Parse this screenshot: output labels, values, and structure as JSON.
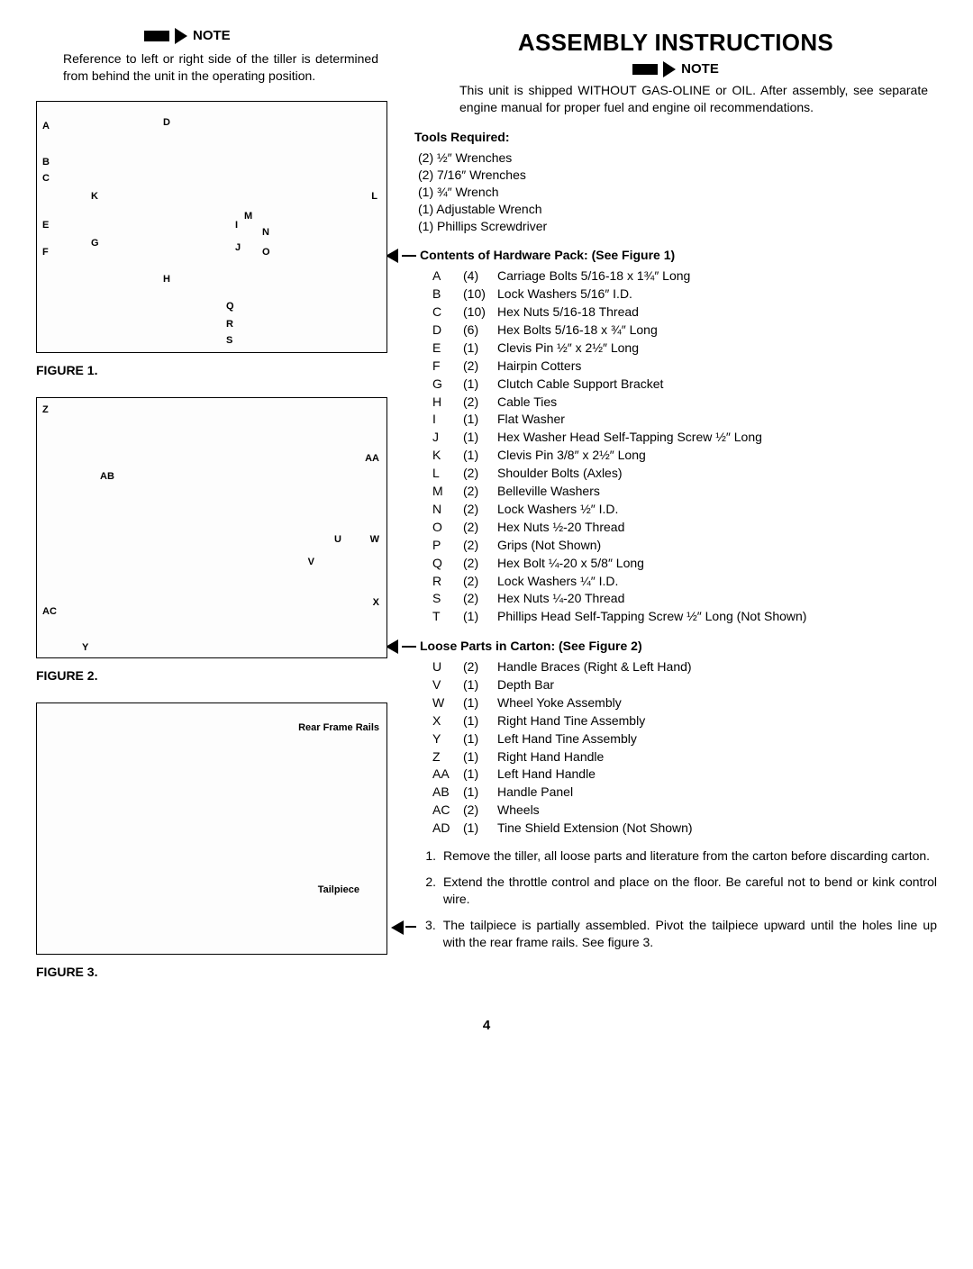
{
  "page_number": "4",
  "left": {
    "note_label": "NOTE",
    "note_body": "Reference to left or right side of the tiller is determined from behind the unit in the operating position.",
    "fig1_label": "FIGURE 1.",
    "fig1_callouts": [
      "A",
      "B",
      "C",
      "D",
      "E",
      "F",
      "G",
      "H",
      "I",
      "J",
      "K",
      "L",
      "M",
      "N",
      "O",
      "Q",
      "R",
      "S"
    ],
    "fig2_label": "FIGURE 2.",
    "fig2_callouts": [
      "Z",
      "AA",
      "AB",
      "U",
      "V",
      "W",
      "X",
      "Y",
      "AC"
    ],
    "fig3_label": "FIGURE 3.",
    "fig3_callouts": [
      "Rear Frame Rails",
      "Tailpiece"
    ]
  },
  "right": {
    "title": "ASSEMBLY INSTRUCTIONS",
    "note_label": "NOTE",
    "note_body": "This unit is shipped WITHOUT GAS-OLINE or OIL. After assembly, see separate engine manual for proper fuel and engine oil recommendations.",
    "tools_head": "Tools Required:",
    "tools": [
      "(2) ½″ Wrenches",
      "(2) 7/16″ Wrenches",
      "(1) ¾″ Wrench",
      "(1) Adjustable Wrench",
      "(1) Phillips Screwdriver"
    ],
    "hw_head": "Contents of Hardware Pack: (See Figure 1)",
    "hw_items": [
      {
        "l": "A",
        "q": "(4)",
        "d": "Carriage Bolts 5/16-18 x 1¾″ Long"
      },
      {
        "l": "B",
        "q": "(10)",
        "d": "Lock Washers 5/16″ I.D."
      },
      {
        "l": "C",
        "q": "(10)",
        "d": "Hex Nuts 5/16-18 Thread"
      },
      {
        "l": "D",
        "q": "(6)",
        "d": "Hex Bolts 5/16-18 x ¾″ Long"
      },
      {
        "l": "E",
        "q": "(1)",
        "d": "Clevis Pin ½″ x 2½″ Long"
      },
      {
        "l": "F",
        "q": "(2)",
        "d": "Hairpin Cotters"
      },
      {
        "l": "G",
        "q": "(1)",
        "d": "Clutch Cable Support Bracket"
      },
      {
        "l": "H",
        "q": "(2)",
        "d": "Cable Ties"
      },
      {
        "l": "I",
        "q": "(1)",
        "d": "Flat Washer"
      },
      {
        "l": "J",
        "q": "(1)",
        "d": "Hex Washer Head Self-Tapping Screw ½″ Long"
      },
      {
        "l": "K",
        "q": "(1)",
        "d": "Clevis Pin 3/8″ x 2½″ Long"
      },
      {
        "l": "L",
        "q": "(2)",
        "d": "Shoulder Bolts (Axles)"
      },
      {
        "l": "M",
        "q": "(2)",
        "d": "Belleville Washers"
      },
      {
        "l": "N",
        "q": "(2)",
        "d": "Lock Washers ½″ I.D."
      },
      {
        "l": "O",
        "q": "(2)",
        "d": "Hex Nuts ½-20 Thread"
      },
      {
        "l": "P",
        "q": "(2)",
        "d": "Grips (Not Shown)"
      },
      {
        "l": "Q",
        "q": "(2)",
        "d": "Hex Bolt ¼-20 x 5/8″ Long"
      },
      {
        "l": "R",
        "q": "(2)",
        "d": "Lock Washers ¼″ I.D."
      },
      {
        "l": "S",
        "q": "(2)",
        "d": "Hex Nuts ¼-20 Thread"
      },
      {
        "l": "T",
        "q": "(1)",
        "d": "Phillips Head Self-Tapping Screw ½″ Long (Not Shown)"
      }
    ],
    "loose_head": "Loose Parts in Carton: (See Figure 2)",
    "loose_items": [
      {
        "l": "U",
        "q": "(2)",
        "d": "Handle Braces (Right & Left Hand)"
      },
      {
        "l": "V",
        "q": "(1)",
        "d": "Depth Bar"
      },
      {
        "l": "W",
        "q": "(1)",
        "d": "Wheel Yoke Assembly"
      },
      {
        "l": "X",
        "q": "(1)",
        "d": "Right Hand Tine Assembly"
      },
      {
        "l": "Y",
        "q": "(1)",
        "d": "Left Hand Tine Assembly"
      },
      {
        "l": "Z",
        "q": "(1)",
        "d": "Right Hand Handle"
      },
      {
        "l": "AA",
        "q": "(1)",
        "d": "Left Hand Handle"
      },
      {
        "l": "AB",
        "q": "(1)",
        "d": "Handle Panel"
      },
      {
        "l": "AC",
        "q": "(2)",
        "d": "Wheels"
      },
      {
        "l": "AD",
        "q": "(1)",
        "d": "Tine Shield Extension (Not Shown)"
      }
    ],
    "steps": [
      {
        "n": "1.",
        "t": "Remove the tiller, all loose parts and literature from the carton before discarding carton."
      },
      {
        "n": "2.",
        "t": "Extend the throttle control and place on the floor. Be careful not to bend or kink control wire."
      },
      {
        "n": "3.",
        "t": "The tailpiece is partially assembled. Pivot the tailpiece upward until the holes line up with the rear frame rails. See figure 3."
      }
    ]
  },
  "style": {
    "title_fontsize": 26,
    "body_fontsize": 14,
    "text_color": "#000000",
    "bg_color": "#ffffff"
  }
}
